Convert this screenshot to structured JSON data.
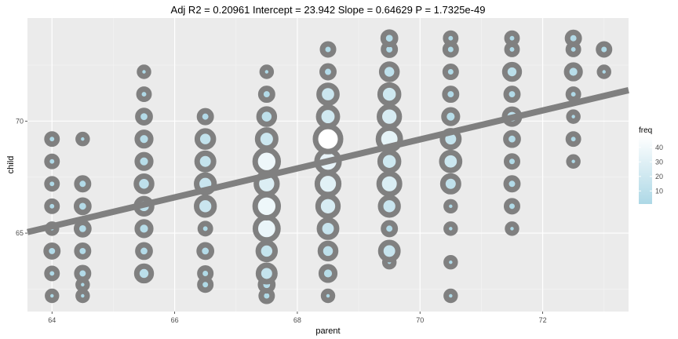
{
  "chart_data": {
    "type": "scatter",
    "title": "Adj R2 =  0.20961 Intercept = 23.942  Slope = 0.64629  P = 1.7325e-49",
    "xlabel": "parent",
    "ylabel": "child",
    "xlim": [
      63.6,
      73.4
    ],
    "ylim": [
      61.5,
      74.6
    ],
    "x_ticks": [
      64,
      66,
      68,
      70,
      72
    ],
    "y_ticks": [
      65,
      70
    ],
    "grid": true,
    "regression": {
      "intercept": 23.942,
      "slope": 0.64629
    },
    "legend": {
      "title": "freq",
      "position": "right",
      "ticks": [
        10,
        20,
        30,
        40
      ],
      "range": [
        1,
        48
      ],
      "color_low": "#add8e6",
      "color_high": "#ffffff"
    },
    "point_outline_color": "#808080",
    "line_color": "#808080",
    "points": [
      {
        "x": 64,
        "y": 62.2,
        "freq": 1
      },
      {
        "x": 64,
        "y": 63.2,
        "freq": 2
      },
      {
        "x": 64,
        "y": 64.2,
        "freq": 4
      },
      {
        "x": 64,
        "y": 65.2,
        "freq": 1
      },
      {
        "x": 64,
        "y": 66.2,
        "freq": 2
      },
      {
        "x": 64,
        "y": 67.2,
        "freq": 2
      },
      {
        "x": 64,
        "y": 68.2,
        "freq": 2
      },
      {
        "x": 64,
        "y": 69.2,
        "freq": 2
      },
      {
        "x": 64.5,
        "y": 62.2,
        "freq": 1
      },
      {
        "x": 64.5,
        "y": 62.7,
        "freq": 1
      },
      {
        "x": 64.5,
        "y": 63.2,
        "freq": 4
      },
      {
        "x": 64.5,
        "y": 64.2,
        "freq": 4
      },
      {
        "x": 64.5,
        "y": 65.2,
        "freq": 5
      },
      {
        "x": 64.5,
        "y": 66.2,
        "freq": 5
      },
      {
        "x": 64.5,
        "y": 67.2,
        "freq": 4
      },
      {
        "x": 64.5,
        "y": 69.2,
        "freq": 1
      },
      {
        "x": 65.5,
        "y": 63.2,
        "freq": 9
      },
      {
        "x": 65.5,
        "y": 64.2,
        "freq": 5
      },
      {
        "x": 65.5,
        "y": 65.2,
        "freq": 7
      },
      {
        "x": 65.5,
        "y": 66.2,
        "freq": 11
      },
      {
        "x": 65.5,
        "y": 67.2,
        "freq": 11
      },
      {
        "x": 65.5,
        "y": 68.2,
        "freq": 7
      },
      {
        "x": 65.5,
        "y": 69.2,
        "freq": 7
      },
      {
        "x": 65.5,
        "y": 70.2,
        "freq": 5
      },
      {
        "x": 65.5,
        "y": 71.2,
        "freq": 2
      },
      {
        "x": 65.5,
        "y": 72.2,
        "freq": 1
      },
      {
        "x": 66.5,
        "y": 62.7,
        "freq": 3
      },
      {
        "x": 66.5,
        "y": 63.2,
        "freq": 3
      },
      {
        "x": 66.5,
        "y": 64.2,
        "freq": 5
      },
      {
        "x": 66.5,
        "y": 65.2,
        "freq": 2
      },
      {
        "x": 66.5,
        "y": 66.2,
        "freq": 17
      },
      {
        "x": 66.5,
        "y": 67.2,
        "freq": 17
      },
      {
        "x": 66.5,
        "y": 68.2,
        "freq": 14
      },
      {
        "x": 66.5,
        "y": 69.2,
        "freq": 13
      },
      {
        "x": 66.5,
        "y": 70.2,
        "freq": 4
      },
      {
        "x": 67.5,
        "y": 62.2,
        "freq": 3
      },
      {
        "x": 67.5,
        "y": 62.7,
        "freq": 5
      },
      {
        "x": 67.5,
        "y": 63.2,
        "freq": 14
      },
      {
        "x": 67.5,
        "y": 64.2,
        "freq": 15
      },
      {
        "x": 67.5,
        "y": 65.2,
        "freq": 36
      },
      {
        "x": 67.5,
        "y": 66.2,
        "freq": 38
      },
      {
        "x": 67.5,
        "y": 67.2,
        "freq": 28
      },
      {
        "x": 67.5,
        "y": 68.2,
        "freq": 38
      },
      {
        "x": 67.5,
        "y": 69.2,
        "freq": 19
      },
      {
        "x": 67.5,
        "y": 70.2,
        "freq": 11
      },
      {
        "x": 67.5,
        "y": 71.2,
        "freq": 4
      },
      {
        "x": 67.5,
        "y": 72.2,
        "freq": 1
      },
      {
        "x": 68.5,
        "y": 62.2,
        "freq": 1
      },
      {
        "x": 68.5,
        "y": 63.2,
        "freq": 7
      },
      {
        "x": 68.5,
        "y": 64.2,
        "freq": 11
      },
      {
        "x": 68.5,
        "y": 65.2,
        "freq": 16
      },
      {
        "x": 68.5,
        "y": 66.2,
        "freq": 25
      },
      {
        "x": 68.5,
        "y": 67.2,
        "freq": 31
      },
      {
        "x": 68.5,
        "y": 68.2,
        "freq": 34
      },
      {
        "x": 68.5,
        "y": 69.2,
        "freq": 48
      },
      {
        "x": 68.5,
        "y": 70.2,
        "freq": 21
      },
      {
        "x": 68.5,
        "y": 71.2,
        "freq": 18
      },
      {
        "x": 68.5,
        "y": 72.2,
        "freq": 4
      },
      {
        "x": 68.5,
        "y": 73.2,
        "freq": 3
      },
      {
        "x": 69.5,
        "y": 63.7,
        "freq": 1
      },
      {
        "x": 69.5,
        "y": 64.2,
        "freq": 16
      },
      {
        "x": 69.5,
        "y": 65.2,
        "freq": 4
      },
      {
        "x": 69.5,
        "y": 66.2,
        "freq": 17
      },
      {
        "x": 69.5,
        "y": 67.2,
        "freq": 27
      },
      {
        "x": 69.5,
        "y": 68.2,
        "freq": 20
      },
      {
        "x": 69.5,
        "y": 69.2,
        "freq": 33
      },
      {
        "x": 69.5,
        "y": 70.2,
        "freq": 25
      },
      {
        "x": 69.5,
        "y": 71.2,
        "freq": 20
      },
      {
        "x": 69.5,
        "y": 72.2,
        "freq": 11
      },
      {
        "x": 69.5,
        "y": 73.2,
        "freq": 4
      },
      {
        "x": 69.5,
        "y": 73.7,
        "freq": 5
      },
      {
        "x": 70.5,
        "y": 62.2,
        "freq": 1
      },
      {
        "x": 70.5,
        "y": 63.7,
        "freq": 1
      },
      {
        "x": 70.5,
        "y": 65.2,
        "freq": 1
      },
      {
        "x": 70.5,
        "y": 66.2,
        "freq": 1
      },
      {
        "x": 70.5,
        "y": 67.2,
        "freq": 12
      },
      {
        "x": 70.5,
        "y": 68.2,
        "freq": 18
      },
      {
        "x": 70.5,
        "y": 69.2,
        "freq": 14
      },
      {
        "x": 70.5,
        "y": 70.2,
        "freq": 7
      },
      {
        "x": 70.5,
        "y": 71.2,
        "freq": 4
      },
      {
        "x": 70.5,
        "y": 72.2,
        "freq": 3
      },
      {
        "x": 70.5,
        "y": 73.2,
        "freq": 3
      },
      {
        "x": 70.5,
        "y": 73.7,
        "freq": 2
      },
      {
        "x": 71.5,
        "y": 65.2,
        "freq": 1
      },
      {
        "x": 71.5,
        "y": 66.2,
        "freq": 3
      },
      {
        "x": 71.5,
        "y": 67.2,
        "freq": 4
      },
      {
        "x": 71.5,
        "y": 68.2,
        "freq": 3
      },
      {
        "x": 71.5,
        "y": 69.2,
        "freq": 5
      },
      {
        "x": 71.5,
        "y": 70.2,
        "freq": 10
      },
      {
        "x": 71.5,
        "y": 71.2,
        "freq": 4
      },
      {
        "x": 71.5,
        "y": 72.2,
        "freq": 9
      },
      {
        "x": 71.5,
        "y": 73.2,
        "freq": 2
      },
      {
        "x": 71.5,
        "y": 73.7,
        "freq": 2
      },
      {
        "x": 72.5,
        "y": 68.2,
        "freq": 1
      },
      {
        "x": 72.5,
        "y": 69.2,
        "freq": 2
      },
      {
        "x": 72.5,
        "y": 70.2,
        "freq": 1
      },
      {
        "x": 72.5,
        "y": 71.2,
        "freq": 2
      },
      {
        "x": 72.5,
        "y": 72.2,
        "freq": 7
      },
      {
        "x": 72.5,
        "y": 73.2,
        "freq": 2
      },
      {
        "x": 72.5,
        "y": 73.7,
        "freq": 4
      },
      {
        "x": 73,
        "y": 72.2,
        "freq": 1
      },
      {
        "x": 73,
        "y": 73.2,
        "freq": 3
      }
    ]
  }
}
